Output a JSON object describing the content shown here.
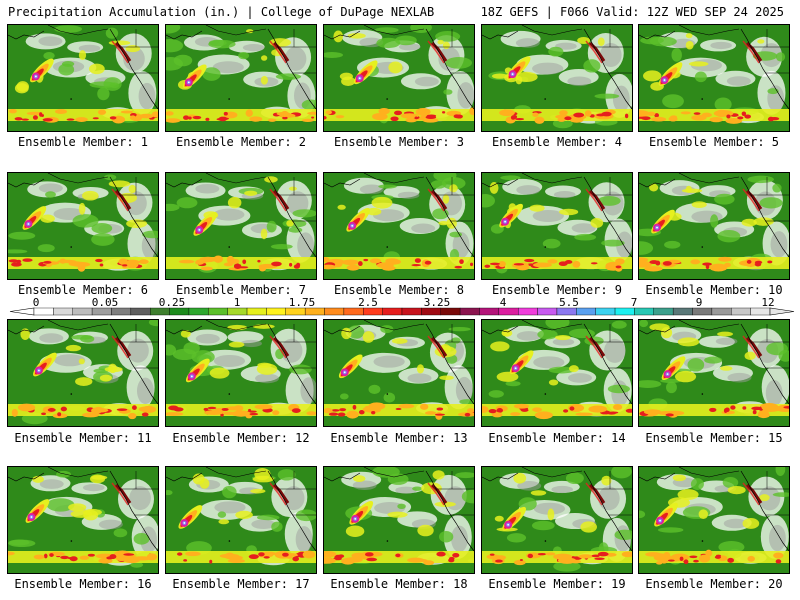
{
  "header": {
    "left_title": "Precipitation Accumulation (in.) | College of DuPage NEXLAB",
    "right_title": "18Z GEFS | F066 Valid: 12Z WED SEP 24 2025"
  },
  "panels": [
    {
      "label": "Ensemble Member: 1"
    },
    {
      "label": "Ensemble Member: 2"
    },
    {
      "label": "Ensemble Member: 3"
    },
    {
      "label": "Ensemble Member: 4"
    },
    {
      "label": "Ensemble Member: 5"
    },
    {
      "label": "Ensemble Member: 6"
    },
    {
      "label": "Ensemble Member: 7"
    },
    {
      "label": "Ensemble Member: 8"
    },
    {
      "label": "Ensemble Member: 9"
    },
    {
      "label": "Ensemble Member: 10"
    },
    {
      "label": "Ensemble Member: 11"
    },
    {
      "label": "Ensemble Member: 12"
    },
    {
      "label": "Ensemble Member: 13"
    },
    {
      "label": "Ensemble Member: 14"
    },
    {
      "label": "Ensemble Member: 15"
    },
    {
      "label": "Ensemble Member: 16"
    },
    {
      "label": "Ensemble Member: 17"
    },
    {
      "label": "Ensemble Member: 18"
    },
    {
      "label": "Ensemble Member: 19"
    },
    {
      "label": "Ensemble Member: 20"
    }
  ],
  "colorbar": {
    "tick_labels": [
      "0",
      "0.05",
      "0.25",
      "1",
      "1.75",
      "2.5",
      "3.25",
      "4",
      "5.5",
      "7",
      "9",
      "12"
    ],
    "colors": [
      "#ffffff",
      "#d9d9d9",
      "#bdbdbd",
      "#9e9e9e",
      "#7f7f7f",
      "#5f5f5f",
      "#3f7f2f",
      "#1e8c1e",
      "#2fa82f",
      "#5cc02a",
      "#a6d92a",
      "#e6f01e",
      "#fff21e",
      "#ffd21e",
      "#ffb01e",
      "#ff8c1e",
      "#ff6a1e",
      "#ff3c1e",
      "#e61e1e",
      "#c8141e",
      "#a00a14",
      "#7a0a0a",
      "#8c1450",
      "#b4147a",
      "#dc1ea0",
      "#f03cdc",
      "#c85af0",
      "#8c78f0",
      "#5aa0f0",
      "#3cd2f0",
      "#1ef0f0",
      "#28c8b4",
      "#3ca08c",
      "#5a7878",
      "#7a7a7a",
      "#9a9a9a",
      "#c8c8c8",
      "#e6e6e6"
    ],
    "palette": {
      "green": "#2f8a1a",
      "light_green": "#5cc02a",
      "yellow": "#e6f01e",
      "orange": "#ffb01e",
      "red": "#e61e1e",
      "dark_red": "#7a0a0a",
      "magenta": "#dc1ea0",
      "purple": "#8c78f0",
      "white": "#ffffff",
      "gray": "#9e9e9e"
    }
  }
}
